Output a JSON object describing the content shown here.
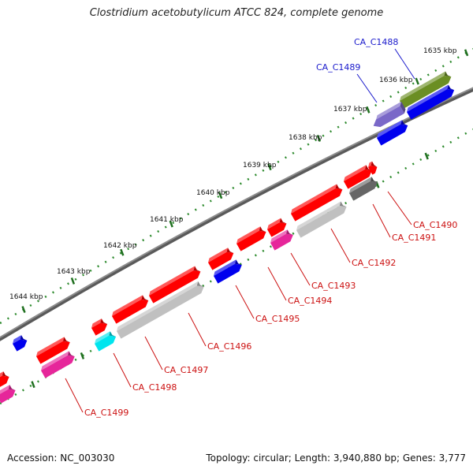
{
  "title": "Clostridium acetobutylicum ATCC 824, complete genome",
  "footer": {
    "accession": "Accession: NC_003030",
    "topology": "Topology: circular; Length: 3,940,880 bp; Genes: 3,777"
  },
  "colors": {
    "backbone": "#8c8c8c",
    "tick": "#2e8b2e",
    "label_blue": "#1a1acc",
    "label_red": "#cc1111"
  },
  "ticks": [
    "1635 kbp",
    "1636 kbp",
    "1637 kbp",
    "1638 kbp",
    "1639 kbp",
    "1640 kbp",
    "1641 kbp",
    "1642 kbp",
    "1643 kbp",
    "1644 kbp"
  ],
  "genes": [
    {
      "label": "CA_C1488",
      "label_color": "blue"
    },
    {
      "label": "CA_C1489",
      "label_color": "blue"
    },
    {
      "label": "CA_C1490",
      "label_color": "red"
    },
    {
      "label": "CA_C1491",
      "label_color": "red"
    },
    {
      "label": "CA_C1492",
      "label_color": "red"
    },
    {
      "label": "CA_C1493",
      "label_color": "red"
    },
    {
      "label": "CA_C1494",
      "label_color": "red"
    },
    {
      "label": "CA_C1495",
      "label_color": "red"
    },
    {
      "label": "CA_C1496",
      "label_color": "red"
    },
    {
      "label": "CA_C1497",
      "label_color": "red"
    },
    {
      "label": "CA_C1498",
      "label_color": "red"
    },
    {
      "label": "CA_C1499",
      "label_color": "red"
    }
  ]
}
